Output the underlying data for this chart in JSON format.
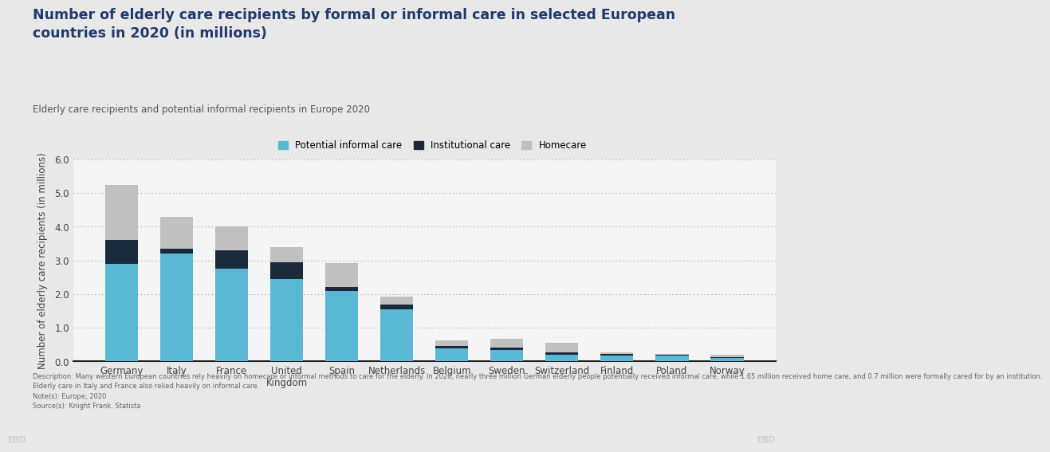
{
  "title": "Number of elderly care recipients by formal or informal care in selected European\ncountries in 2020 (in millions)",
  "subtitle": "Elderly care recipients and potential informal recipients in Europe 2020",
  "ylabel": "Number of elderly care recipients (in millions)",
  "categories": [
    "Germany",
    "Italy",
    "France",
    "United\nKingdom",
    "Spain",
    "Netherlands",
    "Belgium",
    "Sweden",
    "Switzerland",
    "Finland",
    "Poland",
    "Norway"
  ],
  "potential_informal": [
    2.9,
    3.2,
    2.75,
    2.45,
    2.1,
    1.55,
    0.38,
    0.35,
    0.2,
    0.17,
    0.17,
    0.1
  ],
  "institutional": [
    0.7,
    0.15,
    0.55,
    0.5,
    0.1,
    0.15,
    0.08,
    0.07,
    0.07,
    0.04,
    0.02,
    0.03
  ],
  "homecare": [
    1.65,
    0.95,
    0.7,
    0.45,
    0.72,
    0.22,
    0.17,
    0.24,
    0.28,
    0.05,
    0.02,
    0.07
  ],
  "color_potential": "#5BB8D4",
  "color_institutional": "#1B2A3B",
  "color_homecare": "#C0C0C0",
  "ylim": [
    0,
    6.0
  ],
  "yticks": [
    0.0,
    1.0,
    2.0,
    3.0,
    4.0,
    5.0,
    6.0
  ],
  "title_color": "#1F3A6E",
  "subtitle_color": "#555555",
  "background_color": "#E8E8E8",
  "plot_bg_color": "#F5F5F5",
  "footer_lines": [
    "Description: Many western European countries rely heavily on homecare or informal methods to care for the elderly. In 2020, nearly three million German elderly people potentially received informal care, while 1.65 million received home care, and 0.7 million were formally cared for by an institution.",
    "Elderly care in Italy and France also relied heavily on informal care.",
    "Note(s): Europe; 2020",
    "Source(s): Knight Frank, Statista"
  ]
}
